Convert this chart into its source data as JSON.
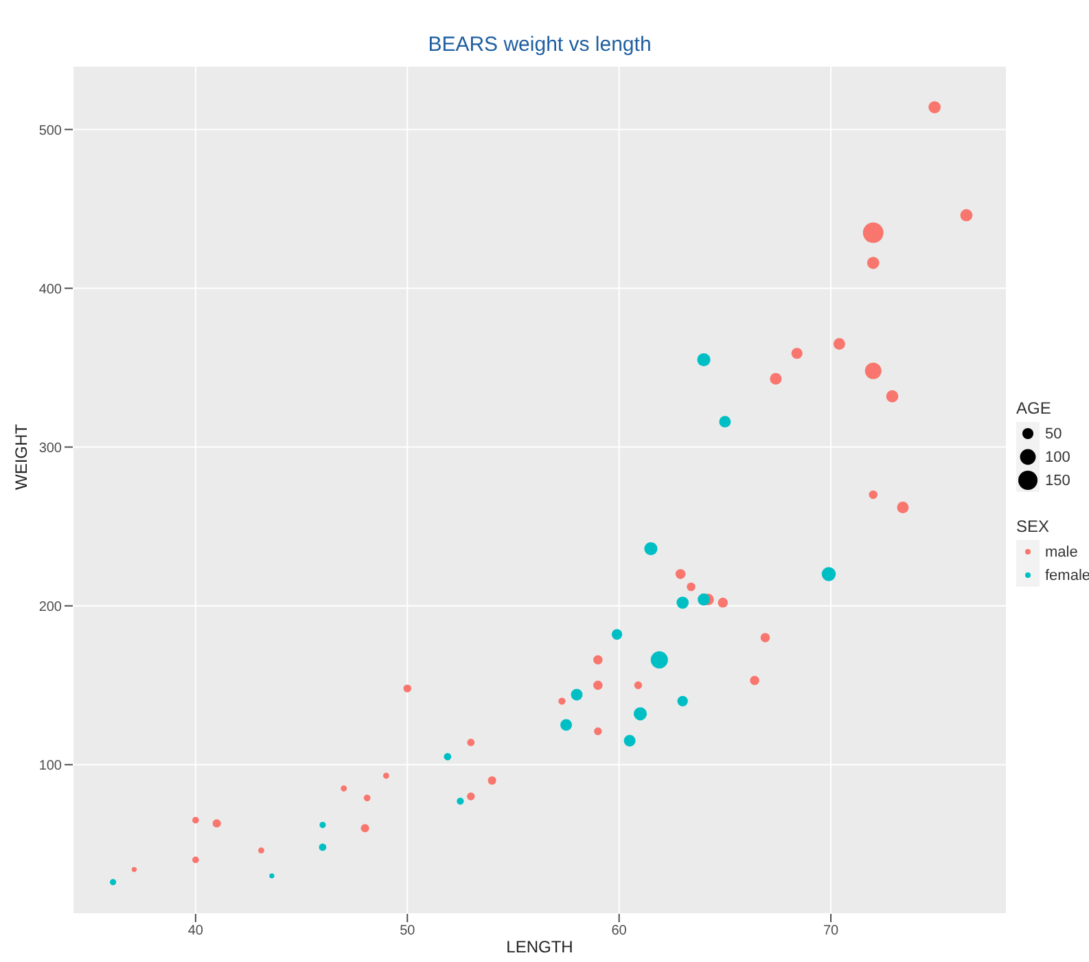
{
  "chart_data": {
    "type": "bubble",
    "title": "BEARS weight vs length",
    "xlabel": "LENGTH",
    "ylabel": "WEIGHT",
    "legend_title": "SEX",
    "annotations": [
      "AGE"
    ],
    "xlim": [
      34.2,
      78.3
    ],
    "xticks": [
      40,
      50,
      60,
      70
    ],
    "ylim": [
      6,
      540
    ],
    "yticks": [
      100,
      200,
      300,
      400,
      500
    ],
    "grid": true,
    "legend": "right",
    "size_legend": [
      50,
      100,
      150
    ],
    "series": [
      {
        "name": "male",
        "color": "#f8766d",
        "x": [
          37.1,
          40,
          40,
          41,
          43.1,
          47,
          48.1,
          48,
          49,
          50,
          53,
          53,
          54,
          57.3,
          59,
          59,
          59,
          60.9,
          62.9,
          63.4,
          64.2,
          64.9,
          66.9,
          66.4,
          67.4,
          68.4,
          70.4,
          72,
          72,
          72,
          72.9,
          72,
          73.4,
          74.9,
          76.4
        ],
        "values": [
          34,
          65,
          40,
          63,
          46,
          85,
          79,
          60,
          93,
          148,
          114,
          80,
          90,
          140,
          166,
          150,
          121,
          150,
          220,
          212,
          204,
          202,
          180,
          153,
          343,
          359,
          365,
          435,
          416,
          348,
          332,
          270,
          262,
          514,
          446
        ],
        "sizes": [
          10,
          18,
          18,
          28,
          15,
          15,
          18,
          28,
          15,
          25,
          22,
          25,
          28,
          20,
          35,
          35,
          25,
          25,
          40,
          30,
          55,
          40,
          35,
          35,
          55,
          50,
          55,
          170,
          60,
          110,
          60,
          30,
          55,
          60,
          60
        ]
      },
      {
        "name": "female",
        "color": "#00bfc4",
        "x": [
          36.1,
          43.6,
          46,
          46,
          51.9,
          52.5,
          57.5,
          58,
          59.9,
          60.5,
          61,
          61.5,
          61.9,
          63,
          63,
          64,
          64,
          65,
          69.9
        ],
        "values": [
          26,
          30,
          62,
          48,
          105,
          77,
          125,
          144,
          182,
          115,
          132,
          236,
          166,
          202,
          140,
          204,
          355,
          316,
          220
        ],
        "sizes": [
          16,
          10,
          16,
          22,
          22,
          20,
          55,
          55,
          45,
          55,
          70,
          70,
          120,
          60,
          45,
          60,
          70,
          55,
          80
        ]
      }
    ]
  }
}
